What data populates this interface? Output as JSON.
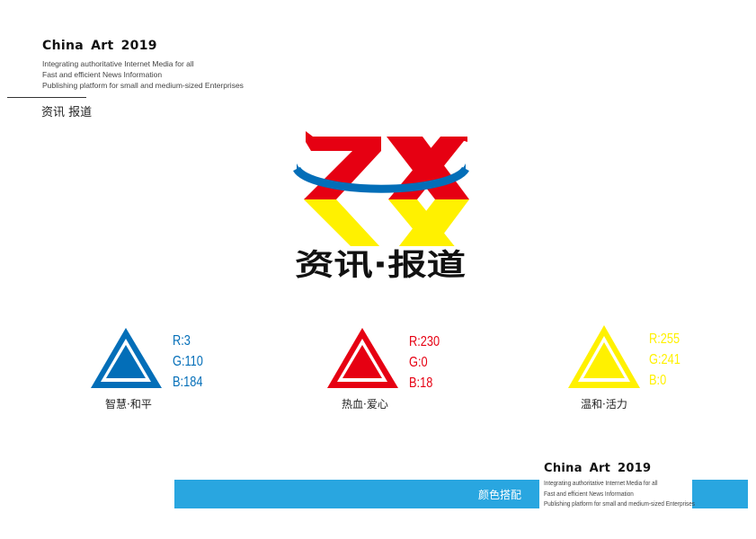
{
  "header": {
    "title": "China Art 2019",
    "lines": [
      "Integrating authoritative Internet Media for all",
      "Fast and efficient News Information",
      "Publishing platform for small and medium-sized Enterprises"
    ],
    "section": "资讯 报道"
  },
  "logo": {
    "letters": "ZX",
    "tagline": "资讯·报道"
  },
  "colors": [
    {
      "r": "R:3",
      "g": "G:110",
      "b": "B:184",
      "label": "智慧·和平",
      "hex": "#036eb8"
    },
    {
      "r": "R:230",
      "g": "G:0",
      "b": "B:18",
      "label": "热血·爱心",
      "hex": "#e60012"
    },
    {
      "r": "R:255",
      "g": "G:241",
      "b": "B:0",
      "label": "温和·活力",
      "hex": "#fff100"
    }
  ],
  "footer": {
    "bar_label": "颜色搭配",
    "title": "China Art 2019",
    "lines": [
      "Integrating authoritative Internet Media for all",
      "Fast and efficient News Information",
      "Publishing platform for small and medium-sized Enterprises"
    ],
    "bar_color": "#29a6e0"
  }
}
